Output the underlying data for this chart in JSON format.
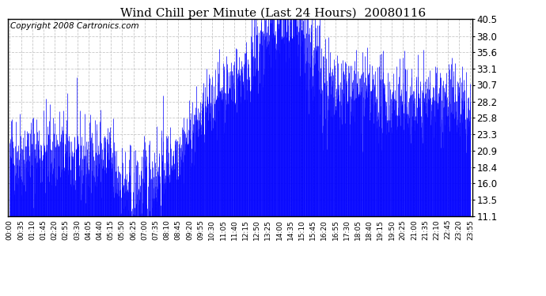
{
  "title": "Wind Chill per Minute (Last 24 Hours)  20080116",
  "copyright": "Copyright 2008 Cartronics.com",
  "yticks": [
    11.1,
    13.5,
    16.0,
    18.4,
    20.9,
    23.3,
    25.8,
    28.2,
    30.7,
    33.1,
    35.6,
    38.0,
    40.5
  ],
  "ymin": 11.1,
  "ymax": 40.5,
  "xtick_labels": [
    "00:00",
    "00:35",
    "01:10",
    "01:45",
    "02:20",
    "02:55",
    "03:30",
    "04:05",
    "04:40",
    "05:15",
    "05:50",
    "06:25",
    "07:00",
    "07:35",
    "08:10",
    "08:45",
    "09:20",
    "09:55",
    "10:30",
    "11:05",
    "11:40",
    "12:15",
    "12:50",
    "13:25",
    "14:00",
    "14:35",
    "15:10",
    "15:45",
    "16:20",
    "16:55",
    "17:30",
    "18:05",
    "18:40",
    "19:15",
    "19:50",
    "20:25",
    "21:00",
    "21:35",
    "22:10",
    "22:45",
    "23:20",
    "23:55"
  ],
  "line_color": "#0000ff",
  "background_color": "#ffffff",
  "grid_color": "#c8c8c8",
  "title_fontsize": 11,
  "copyright_fontsize": 7.5,
  "seed": 12345
}
